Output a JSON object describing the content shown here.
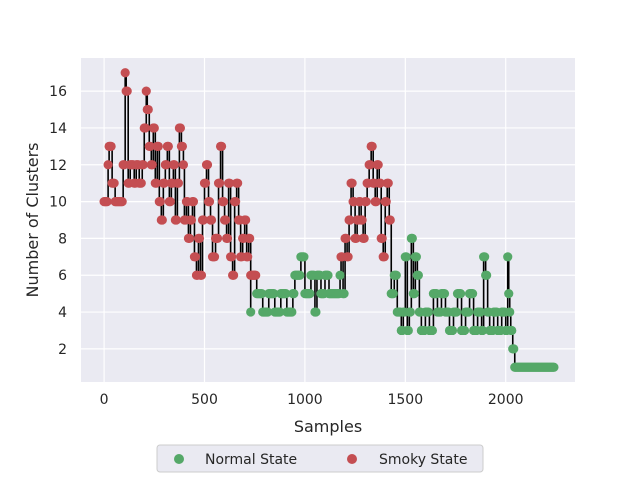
{
  "chart_data": {
    "type": "scatter",
    "title": "",
    "xlabel": "Samples",
    "ylabel": "Number of Clusters",
    "xlim": [
      -115,
      2345
    ],
    "ylim": [
      0.2,
      17.8
    ],
    "xticks": [
      0,
      500,
      1000,
      1500,
      2000
    ],
    "yticks": [
      2,
      4,
      6,
      8,
      10,
      12,
      14,
      16
    ],
    "grid": true,
    "legend_position": "bottom-center",
    "colors": {
      "background": "#eaeaf2",
      "grid": "#ffffff",
      "normal": "#55a868",
      "smoky": "#c44e52",
      "line": "#000000"
    },
    "series": [
      {
        "name": "Normal State",
        "color": "#55a868",
        "segments": [
          [
            730,
            4
          ],
          [
            760,
            5
          ],
          [
            790,
            4
          ],
          [
            820,
            5
          ],
          [
            850,
            4
          ],
          [
            880,
            5
          ],
          [
            910,
            4
          ],
          [
            940,
            5
          ],
          [
            950,
            6
          ],
          [
            980,
            7
          ],
          [
            1000,
            5
          ],
          [
            1030,
            6
          ],
          [
            1050,
            4
          ],
          [
            1060,
            6
          ],
          [
            1080,
            5
          ],
          [
            1100,
            6
          ],
          [
            1120,
            5
          ],
          [
            1140,
            5
          ],
          [
            1160,
            5
          ],
          [
            1175,
            6
          ],
          [
            1190,
            5
          ],
          [
            1430,
            5
          ],
          [
            1445,
            6
          ],
          [
            1460,
            4
          ],
          [
            1480,
            3
          ],
          [
            1490,
            4
          ],
          [
            1500,
            7
          ],
          [
            1510,
            3
          ],
          [
            1520,
            4
          ],
          [
            1530,
            8
          ],
          [
            1540,
            5
          ],
          [
            1550,
            7
          ],
          [
            1560,
            6
          ],
          [
            1570,
            4
          ],
          [
            1580,
            3
          ],
          [
            1600,
            4
          ],
          [
            1620,
            3
          ],
          [
            1640,
            5
          ],
          [
            1660,
            4
          ],
          [
            1680,
            5
          ],
          [
            1700,
            4
          ],
          [
            1720,
            3
          ],
          [
            1740,
            4
          ],
          [
            1760,
            5
          ],
          [
            1780,
            3
          ],
          [
            1800,
            4
          ],
          [
            1820,
            5
          ],
          [
            1840,
            3
          ],
          [
            1860,
            4
          ],
          [
            1880,
            3
          ],
          [
            1890,
            7
          ],
          [
            1900,
            6
          ],
          [
            1910,
            4
          ],
          [
            1920,
            3
          ],
          [
            1940,
            4
          ],
          [
            1960,
            3
          ],
          [
            1980,
            4
          ],
          [
            2000,
            3
          ],
          [
            2010,
            7
          ],
          [
            2015,
            5
          ],
          [
            2020,
            4
          ],
          [
            2025,
            3
          ],
          [
            2035,
            2
          ],
          [
            2045,
            1
          ],
          [
            2060,
            1
          ],
          [
            2080,
            1
          ],
          [
            2100,
            1
          ],
          [
            2120,
            1
          ],
          [
            2140,
            1
          ],
          [
            2160,
            1
          ],
          [
            2180,
            1
          ],
          [
            2200,
            1
          ],
          [
            2220,
            1
          ],
          [
            2240,
            1
          ]
        ]
      },
      {
        "name": "Smoky State",
        "color": "#c44e52",
        "segments": [
          [
            0,
            10
          ],
          [
            20,
            12
          ],
          [
            25,
            13
          ],
          [
            40,
            11
          ],
          [
            55,
            10
          ],
          [
            70,
            10
          ],
          [
            85,
            10
          ],
          [
            95,
            12
          ],
          [
            105,
            17
          ],
          [
            110,
            16
          ],
          [
            120,
            11
          ],
          [
            130,
            12
          ],
          [
            150,
            11
          ],
          [
            160,
            12
          ],
          [
            175,
            11
          ],
          [
            190,
            12
          ],
          [
            200,
            14
          ],
          [
            210,
            16
          ],
          [
            215,
            15
          ],
          [
            225,
            13
          ],
          [
            235,
            12
          ],
          [
            245,
            14
          ],
          [
            255,
            11
          ],
          [
            265,
            13
          ],
          [
            275,
            10
          ],
          [
            285,
            9
          ],
          [
            295,
            11
          ],
          [
            305,
            12
          ],
          [
            315,
            13
          ],
          [
            325,
            10
          ],
          [
            335,
            11
          ],
          [
            345,
            12
          ],
          [
            355,
            9
          ],
          [
            365,
            11
          ],
          [
            375,
            14
          ],
          [
            385,
            13
          ],
          [
            395,
            12
          ],
          [
            400,
            9
          ],
          [
            410,
            10
          ],
          [
            420,
            8
          ],
          [
            430,
            9
          ],
          [
            440,
            10
          ],
          [
            450,
            7
          ],
          [
            460,
            6
          ],
          [
            470,
            8
          ],
          [
            480,
            6
          ],
          [
            490,
            9
          ],
          [
            500,
            11
          ],
          [
            510,
            12
          ],
          [
            520,
            10
          ],
          [
            530,
            9
          ],
          [
            540,
            7
          ],
          [
            555,
            8
          ],
          [
            570,
            11
          ],
          [
            580,
            13
          ],
          [
            590,
            10
          ],
          [
            600,
            9
          ],
          [
            610,
            8
          ],
          [
            620,
            11
          ],
          [
            630,
            7
          ],
          [
            640,
            6
          ],
          [
            650,
            10
          ],
          [
            660,
            11
          ],
          [
            670,
            9
          ],
          [
            680,
            7
          ],
          [
            690,
            8
          ],
          [
            700,
            9
          ],
          [
            710,
            7
          ],
          [
            720,
            8
          ],
          [
            730,
            6
          ],
          [
            1180,
            7
          ],
          [
            1200,
            8
          ],
          [
            1210,
            7
          ],
          [
            1220,
            9
          ],
          [
            1230,
            11
          ],
          [
            1240,
            10
          ],
          [
            1250,
            8
          ],
          [
            1260,
            9
          ],
          [
            1270,
            10
          ],
          [
            1280,
            9
          ],
          [
            1290,
            8
          ],
          [
            1300,
            10
          ],
          [
            1310,
            11
          ],
          [
            1320,
            12
          ],
          [
            1330,
            13
          ],
          [
            1340,
            11
          ],
          [
            1350,
            10
          ],
          [
            1360,
            12
          ],
          [
            1370,
            11
          ],
          [
            1380,
            8
          ],
          [
            1390,
            7
          ],
          [
            1400,
            10
          ],
          [
            1410,
            11
          ],
          [
            1420,
            9
          ]
        ]
      }
    ]
  },
  "legend": {
    "items": [
      {
        "label": "Normal State",
        "color": "#55a868"
      },
      {
        "label": "Smoky State",
        "color": "#c44e52"
      }
    ]
  }
}
